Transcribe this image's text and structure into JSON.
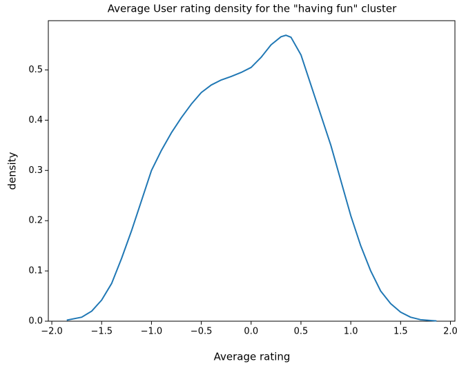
{
  "chart_data": {
    "type": "line",
    "title": "Average User rating density for the \"having fun\" cluster",
    "xlabel": "Average rating",
    "ylabel": "density",
    "x": [
      -1.85,
      -1.7,
      -1.6,
      -1.5,
      -1.4,
      -1.3,
      -1.2,
      -1.1,
      -1.0,
      -0.9,
      -0.8,
      -0.7,
      -0.6,
      -0.5,
      -0.4,
      -0.3,
      -0.2,
      -0.1,
      0.0,
      0.1,
      0.2,
      0.3,
      0.35,
      0.4,
      0.5,
      0.6,
      0.7,
      0.8,
      0.9,
      1.0,
      1.1,
      1.2,
      1.3,
      1.4,
      1.5,
      1.6,
      1.7,
      1.86
    ],
    "series": [
      {
        "color": "#1f77b4",
        "values": [
          0.002,
          0.008,
          0.02,
          0.042,
          0.075,
          0.125,
          0.18,
          0.24,
          0.3,
          0.34,
          0.375,
          0.405,
          0.432,
          0.455,
          0.47,
          0.48,
          0.487,
          0.495,
          0.505,
          0.525,
          0.55,
          0.566,
          0.569,
          0.565,
          0.53,
          0.47,
          0.41,
          0.35,
          0.28,
          0.21,
          0.15,
          0.1,
          0.06,
          0.035,
          0.018,
          0.008,
          0.003,
          0.0005
        ]
      }
    ],
    "xlim": [
      -2.035,
      2.045
    ],
    "ylim": [
      0,
      0.598
    ],
    "xticks": [
      {
        "value": -2.0,
        "label": "−2.0"
      },
      {
        "value": -1.5,
        "label": "−1.5"
      },
      {
        "value": -1.0,
        "label": "−1.0"
      },
      {
        "value": -0.5,
        "label": "−0.5"
      },
      {
        "value": 0.0,
        "label": "0.0"
      },
      0.5,
      {
        "value": 1.0,
        "label": "1.0"
      },
      1.5,
      {
        "value": 2.0,
        "label": "2.0"
      }
    ],
    "yticks": [
      {
        "value": 0,
        "label": "0.0"
      },
      0.1,
      0.2,
      0.3,
      0.4,
      0.5
    ]
  }
}
